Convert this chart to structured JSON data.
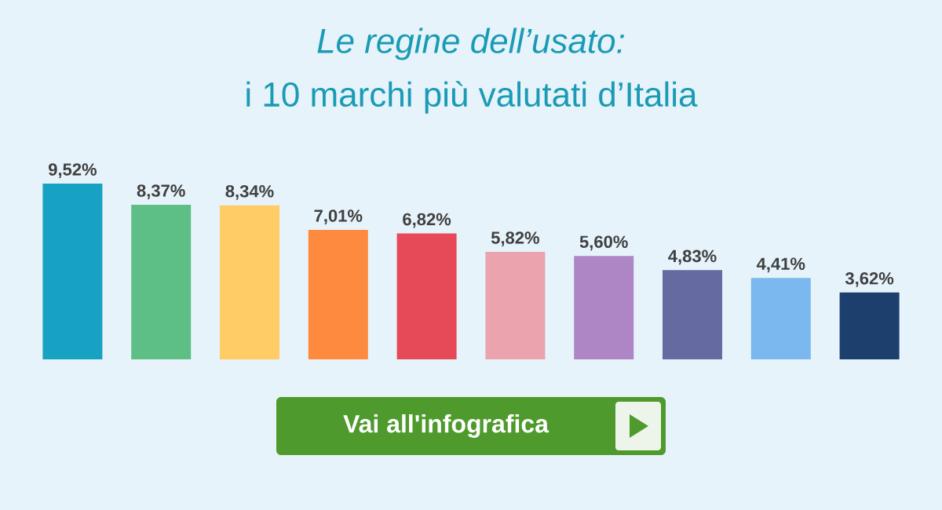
{
  "chart_data": {
    "type": "bar",
    "title": "Le regine dell’usato:",
    "subtitle": "i 10 marchi più valutati d’Italia",
    "categories": [
      null,
      null,
      null,
      null,
      null,
      null,
      null,
      null,
      null,
      null
    ],
    "values": [
      9.52,
      8.37,
      8.34,
      7.01,
      6.82,
      5.82,
      5.6,
      4.83,
      4.41,
      3.62
    ],
    "value_labels": [
      "9,52%",
      "8,37%",
      "8,34%",
      "7,01%",
      "6,82%",
      "5,82%",
      "5,60%",
      "4,83%",
      "4,41%",
      "3,62%"
    ],
    "colors": [
      "#17a2c4",
      "#5dbf86",
      "#ffcc66",
      "#fd8a3e",
      "#e64a59",
      "#eba3ae",
      "#ae86c5",
      "#656aa0",
      "#7ab8ef",
      "#1d3f6e"
    ],
    "annotations": [
      "Vai all'infografica"
    ]
  }
}
